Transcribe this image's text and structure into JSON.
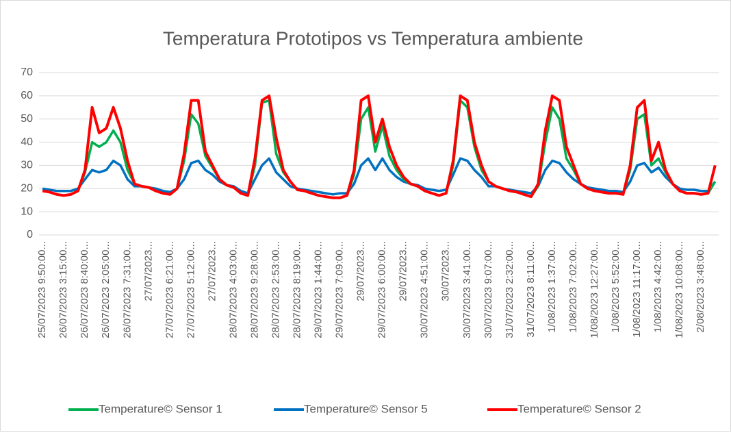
{
  "chart_data": {
    "type": "line",
    "title": "Temperatura Prototipos vs Temperatura ambiente",
    "categories": [
      "25/07/2023 9:50:00...",
      null,
      null,
      "26/07/2023 3:15:00...",
      null,
      null,
      "26/07/2023 8:40:00...",
      null,
      null,
      "26/07/2023 2:05:00...",
      null,
      null,
      "26/07/2023 7:31:00...",
      null,
      null,
      "27/07/2023...",
      null,
      null,
      "27/07/2023 6:21:00...",
      null,
      null,
      "27/07/2023 5:12:00...",
      null,
      null,
      "27/07/2023...",
      null,
      null,
      "28/07/2023 4:03:00...",
      null,
      null,
      "28/07/2023 9:28:00...",
      null,
      null,
      "28/07/2023 2:53:00...",
      null,
      null,
      "28/07/2023 8:19:00...",
      null,
      null,
      "29/07/2023 1:44:00...",
      null,
      null,
      "29/07/2023 7:09:00...",
      null,
      null,
      "29/07/2023...",
      null,
      null,
      "29/07/2023 6:00:00...",
      null,
      null,
      "29/07/2023...",
      null,
      null,
      "30/07/2023 4:51:00...",
      null,
      null,
      "30/07/2023...",
      null,
      null,
      "30/07/2023 3:41:00...",
      null,
      null,
      "30/07/2023 9:07:00...",
      null,
      null,
      "31/07/2023 2:32:00...",
      null,
      null,
      "31/07/2023 8:11:00...",
      null,
      null,
      "1/08/2023 1:37:00...",
      null,
      null,
      "1/08/2023 7:02:00...",
      null,
      null,
      "1/08/2023 12:27:00...",
      null,
      null,
      "1/08/2023 5:52:00...",
      null,
      null,
      "1/08/2023 11:17:00...",
      null,
      null,
      "1/08/2023 4:42:00...",
      null,
      null,
      "1/08/2023 10:08:00...",
      null,
      null,
      "2/08/2023 3:48:00...",
      null,
      null
    ],
    "series": [
      {
        "name": "Temperature© Sensor 1",
        "color": "#00b050",
        "values": [
          19,
          18.5,
          17.5,
          17,
          17.5,
          19,
          27,
          40,
          38,
          40,
          45,
          40,
          28,
          22,
          21,
          20.5,
          19,
          18,
          17.5,
          20,
          32,
          52,
          48,
          34,
          29,
          24,
          21.5,
          20.5,
          18,
          17,
          30,
          57,
          58,
          35,
          27,
          23,
          19.5,
          19,
          18,
          17,
          16.5,
          16,
          16,
          17,
          26,
          50,
          55,
          36,
          47,
          34,
          28,
          24,
          22,
          21,
          19,
          18,
          17,
          18,
          30,
          58,
          55,
          38,
          28,
          23,
          21,
          20,
          19,
          18.5,
          17.5,
          16.5,
          21,
          40,
          55,
          50,
          33,
          28,
          22,
          20,
          19,
          18.5,
          18,
          18,
          17.5,
          28,
          50,
          52,
          30,
          33,
          27,
          22,
          19,
          18,
          18,
          17.5,
          18,
          23
        ]
      },
      {
        "name": "Temperature© Sensor 5",
        "color": "#0070c0",
        "values": [
          20,
          19.5,
          19,
          19,
          19,
          20,
          24,
          28,
          27,
          28,
          32,
          30,
          24,
          21,
          21,
          20.5,
          20,
          19,
          18.5,
          20,
          24,
          31,
          32,
          28,
          26,
          23,
          21.5,
          21,
          19,
          18,
          24,
          30,
          33,
          27,
          24,
          21,
          20,
          19.5,
          19,
          18.5,
          18,
          17.5,
          18,
          18,
          22,
          30,
          33,
          28,
          33,
          28,
          25,
          23,
          22,
          21.5,
          20,
          19.5,
          19,
          19.5,
          26,
          33,
          32,
          28,
          25,
          21,
          21,
          20,
          19.5,
          19,
          18.5,
          18,
          21,
          28,
          32,
          31,
          27,
          24,
          22,
          20.5,
          20,
          19.5,
          19,
          19,
          18.5,
          23,
          30,
          31,
          27,
          29,
          25,
          22,
          20,
          19.5,
          19.5,
          19,
          19,
          23
        ]
      },
      {
        "name": "Temperature© Sensor 2",
        "color": "#ff0000",
        "values": [
          19,
          18.5,
          17.5,
          17,
          17.5,
          19,
          28,
          55,
          44,
          46,
          55,
          46,
          32,
          22,
          21,
          20.5,
          19,
          18,
          17.5,
          20,
          35,
          58,
          58,
          36,
          30,
          24,
          21.5,
          20.5,
          18,
          17,
          33,
          58,
          60,
          42,
          28,
          23,
          19.5,
          19,
          18,
          17,
          16.5,
          16,
          16,
          17,
          28,
          58,
          60,
          40,
          50,
          38,
          30,
          25,
          22,
          21,
          19,
          18,
          17,
          18,
          32,
          60,
          58,
          40,
          30,
          23,
          21,
          20,
          19,
          18.5,
          17.5,
          16.5,
          22,
          45,
          60,
          58,
          38,
          30,
          22,
          20,
          19,
          18.5,
          18,
          18,
          17.5,
          30,
          55,
          58,
          32,
          40,
          28,
          22,
          19,
          18,
          18,
          17.5,
          18,
          30
        ]
      }
    ],
    "ylim": [
      0,
      70
    ],
    "yticks": [
      0,
      10,
      20,
      30,
      40,
      50,
      60,
      70
    ],
    "grid": true,
    "legend": "bottom"
  }
}
